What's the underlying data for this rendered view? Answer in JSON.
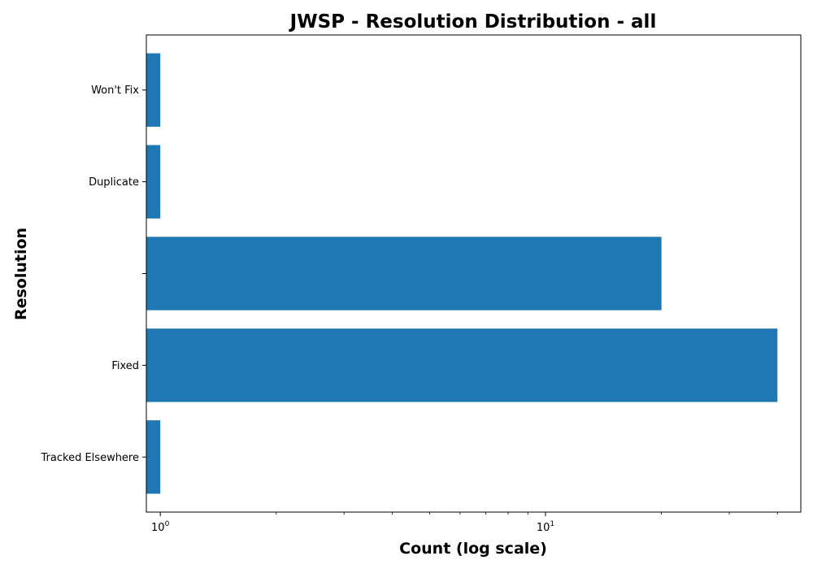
{
  "chart_data": {
    "type": "bar",
    "orientation": "horizontal",
    "title": "JWSP - Resolution Distribution - all",
    "xlabel": "Count (log scale)",
    "ylabel": "Resolution",
    "x_scale": "log",
    "xlim": [
      0.92,
      46
    ],
    "x_ticks": [
      {
        "value": 1,
        "base": "10",
        "exp": "0"
      },
      {
        "value": 10,
        "base": "10",
        "exp": "1"
      }
    ],
    "categories": [
      "Tracked Elsewhere",
      "Fixed",
      "",
      "Duplicate",
      "Won't Fix"
    ],
    "values": [
      1,
      40,
      20,
      1,
      1
    ],
    "bar_color": "#1f77b4",
    "grid": false,
    "legend": "none"
  }
}
